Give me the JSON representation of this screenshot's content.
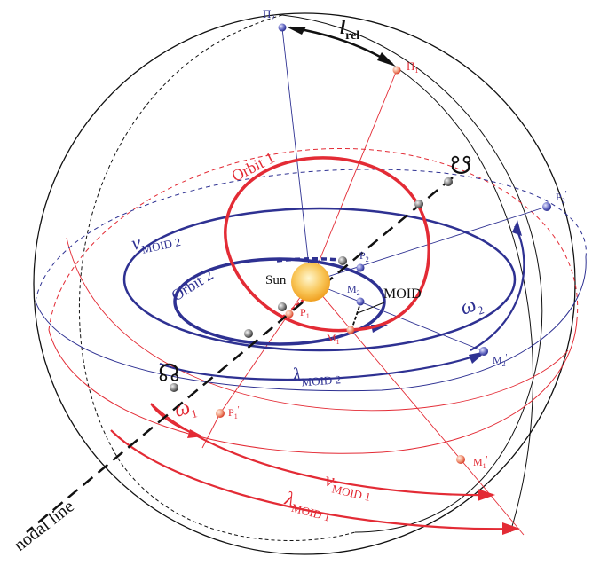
{
  "colors": {
    "orbit1": "#e32b35",
    "orbit2": "#2e3192",
    "black": "#111111",
    "sun": "#f7b733",
    "planet": "#8c8c8c"
  },
  "labels": {
    "orbit1": "Orbit 1",
    "orbit2": "Orbit 2",
    "sun": "Sun",
    "moid": "MOID",
    "nodal_line": "nodal line",
    "ascending_node_symbol": "☊",
    "descending_node_symbol": "☋",
    "l_rel": {
      "main": "l",
      "sub": "rel"
    },
    "omega1": {
      "main": "ω",
      "sub": "1"
    },
    "omega2": {
      "main": "ω",
      "sub": "2"
    },
    "nu_moid1": {
      "main": "ν",
      "sub": "MOID 1"
    },
    "nu_moid2": {
      "main": "ν",
      "sub": "MOID 2"
    },
    "lambda_moid1": {
      "main": "λ",
      "sub": "MOID 1"
    },
    "lambda_moid2": {
      "main": "λ",
      "sub": "MOID 2"
    },
    "Pi1": {
      "main": "Π",
      "sub": "1"
    },
    "Pi2": {
      "main": "Π",
      "sub": "2"
    },
    "P1": {
      "main": "P",
      "sub": "1"
    },
    "P2": {
      "main": "P",
      "sub": "2"
    },
    "P1p": {
      "main": "P",
      "sub": "1",
      "prime": "'"
    },
    "P2p": {
      "main": "P",
      "sub": "2",
      "prime": "'"
    },
    "M1": {
      "main": "M",
      "sub": "1"
    },
    "M2": {
      "main": "M",
      "sub": "2"
    },
    "M1p": {
      "main": "M",
      "sub": "1",
      "prime": "'"
    },
    "M2p": {
      "main": "M",
      "sub": "2",
      "prime": "'"
    }
  }
}
